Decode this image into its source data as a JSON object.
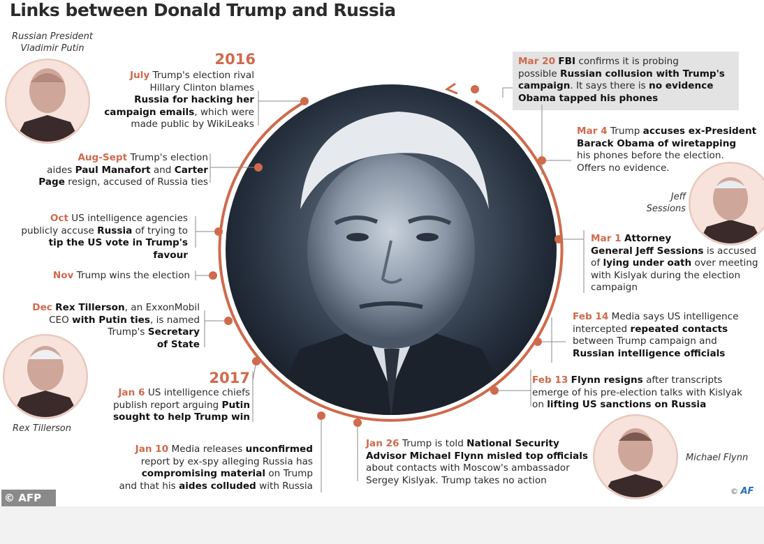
{
  "title": "Links between Donald Trump and Russia",
  "years": {
    "y2016": "2016",
    "y2017": "2017"
  },
  "captions": {
    "putin": [
      "Russian President",
      "Vladimir Putin"
    ],
    "sessions": [
      "Jeff",
      "Sessions"
    ],
    "tillerson": "Rex Tillerson",
    "flynn": "Michael Flynn"
  },
  "events_left": [
    {
      "date": "July",
      "lines": [
        [
          {
            "t": "Trump's election rival"
          }
        ],
        [
          {
            "t": "Hillary Clinton blames"
          }
        ],
        [
          {
            "t": "Russia for hacking her",
            "b": true
          }
        ],
        [
          {
            "t": "campaign emails",
            "b": true
          },
          {
            "t": ", which were"
          }
        ],
        [
          {
            "t": "made public by WikiLeaks"
          }
        ]
      ]
    },
    {
      "date": "Aug-Sept",
      "lines": [
        [
          {
            "t": "Trump's election"
          }
        ],
        [
          {
            "t": "aides "
          },
          {
            "t": "Paul Manafort",
            "b": true
          },
          {
            "t": " and "
          },
          {
            "t": "Carter",
            "b": true
          }
        ],
        [
          {
            "t": "Page",
            "b": true
          },
          {
            "t": " resign, accused of Russia ties"
          }
        ]
      ]
    },
    {
      "date": "Oct",
      "lines": [
        [
          {
            "t": "US intelligence agencies"
          }
        ],
        [
          {
            "t": "publicly accuse "
          },
          {
            "t": "Russia",
            "b": true
          },
          {
            "t": " of trying to"
          }
        ],
        [
          {
            "t": "tip the US vote in Trump's favour",
            "b": true
          }
        ]
      ]
    },
    {
      "date": "Nov",
      "lines": [
        [
          {
            "t": "Trump wins the election"
          }
        ]
      ]
    },
    {
      "date": "Dec",
      "lines": [
        [
          {
            "t": "Rex Tillerson",
            "b": true
          },
          {
            "t": ", an ExxonMobil"
          }
        ],
        [
          {
            "t": "CEO "
          },
          {
            "t": "with Putin ties",
            "b": true
          },
          {
            "t": ", is named"
          }
        ],
        [
          {
            "t": "Trump's "
          },
          {
            "t": "Secretary",
            "b": true
          }
        ],
        [
          {
            "t": "of State",
            "b": true
          }
        ]
      ]
    },
    {
      "date": "Jan 6",
      "lines": [
        [
          {
            "t": "US intelligence chiefs"
          }
        ],
        [
          {
            "t": "publish report arguing "
          },
          {
            "t": "Putin",
            "b": true
          }
        ],
        [
          {
            "t": "sought to help Trump win",
            "b": true
          }
        ]
      ]
    },
    {
      "date": "Jan 10",
      "lines": [
        [
          {
            "t": "Media releases "
          },
          {
            "t": "unconfirmed",
            "b": true
          }
        ],
        [
          {
            "t": "report by ex-spy alleging Russia has"
          }
        ],
        [
          {
            "t": "compromising material",
            "b": true
          },
          {
            "t": " on Trump"
          }
        ],
        [
          {
            "t": "and that his "
          },
          {
            "t": "aides colluded",
            "b": true
          },
          {
            "t": " with Russia"
          }
        ]
      ]
    }
  ],
  "events_right": [
    {
      "date": "Mar 20",
      "lines": [
        [
          {
            "t": "FBI",
            "b": true
          },
          {
            "t": " confirms it is probing"
          }
        ],
        [
          {
            "t": "possible "
          },
          {
            "t": "Russian collusion with Trump's",
            "b": true
          }
        ],
        [
          {
            "t": "campaign",
            "b": true
          },
          {
            "t": ". It says there is "
          },
          {
            "t": "no evidence",
            "b": true
          }
        ],
        [
          {
            "t": "Obama tapped his phones",
            "b": true
          }
        ]
      ]
    },
    {
      "date": "Mar 4",
      "lines": [
        [
          {
            "t": "Trump "
          },
          {
            "t": "accuses ex-President",
            "b": true
          }
        ],
        [
          {
            "t": "Barack Obama of wiretapping",
            "b": true
          }
        ],
        [
          {
            "t": "his phones before the election."
          }
        ],
        [
          {
            "t": "Offers no evidence."
          }
        ]
      ]
    },
    {
      "date": "Mar 1",
      "lines": [
        [
          {
            "t": "Attorney",
            "b": true
          }
        ],
        [
          {
            "t": "General Jeff Sessions",
            "b": true
          },
          {
            "t": " is accused"
          }
        ],
        [
          {
            "t": "of "
          },
          {
            "t": "lying under oath",
            "b": true
          },
          {
            "t": " over meeting"
          }
        ],
        [
          {
            "t": "with Kislyak during the election"
          }
        ],
        [
          {
            "t": "campaign"
          }
        ]
      ]
    },
    {
      "date": "Feb 14",
      "lines": [
        [
          {
            "t": "Media says US intelligence"
          }
        ],
        [
          {
            "t": "intercepted "
          },
          {
            "t": "repeated contacts",
            "b": true
          }
        ],
        [
          {
            "t": "between Trump campaign and"
          }
        ],
        [
          {
            "t": "Russian intelligence officials",
            "b": true
          }
        ]
      ]
    },
    {
      "date": "Feb 13",
      "lines": [
        [
          {
            "t": "Flynn resigns",
            "b": true
          },
          {
            "t": " after transcripts"
          }
        ],
        [
          {
            "t": "emerge of his pre-election talks with Kislyak"
          }
        ],
        [
          {
            "t": "on "
          },
          {
            "t": "lifting US sanctions on Russia",
            "b": true
          }
        ]
      ]
    },
    {
      "date": "Jan 26",
      "lines": [
        [
          {
            "t": "Trump is told "
          },
          {
            "t": "National Security",
            "b": true
          }
        ],
        [
          {
            "t": "Advisor Michael Flynn misled top officials",
            "b": true
          }
        ],
        [
          {
            "t": "about contacts with Moscow's ambassador"
          }
        ],
        [
          {
            "t": "Sergey Kislyak. Trump takes no action"
          }
        ]
      ]
    }
  ],
  "credits": {
    "afp_box": "© AFP",
    "afp_corner": "©",
    "afp_logo": "AF"
  },
  "colors": {
    "accent": "#cf6a4c",
    "text": "#2a2a2a",
    "highlight_box": "#e3e3e3",
    "photo_tint": "#9aa6b4"
  }
}
